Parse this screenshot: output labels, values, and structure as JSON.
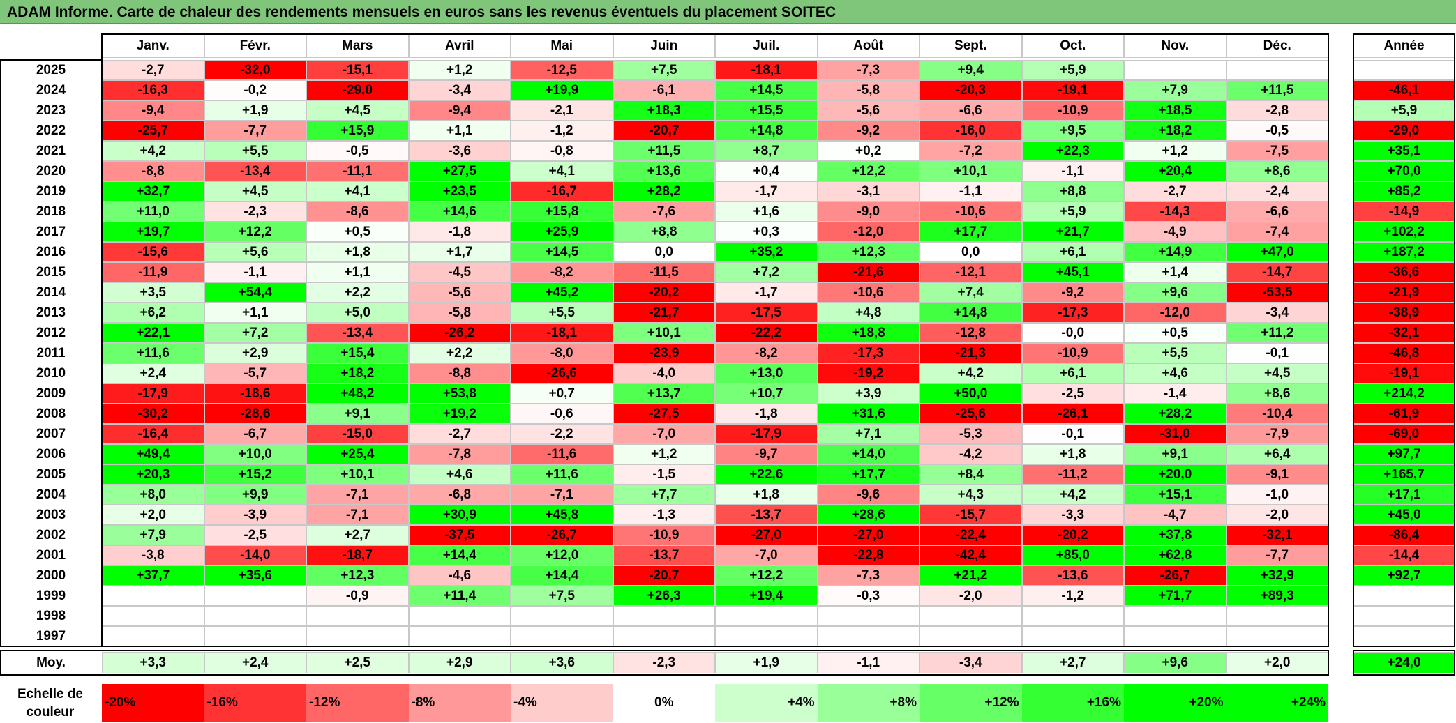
{
  "title": "ADAM Informe. Carte de chaleur des rendements mensuels en euros sans les revenus éventuels du placement SOITEC",
  "colors": {
    "title_bg": "#7fc67b",
    "negative_max": "#ff0000",
    "positive_max": "#00ff00",
    "neutral": "#ffffff"
  },
  "chart_data": {
    "type": "heatmap",
    "title": "ADAM Informe. Carte de chaleur des rendements mensuels en euros sans les revenus éventuels du placement SOITEC",
    "columns": [
      "Janv.",
      "Févr.",
      "Mars",
      "Avril",
      "Mai",
      "Juin",
      "Juil.",
      "Août",
      "Sept.",
      "Oct.",
      "Nov.",
      "Déc."
    ],
    "annual_header": "Année",
    "rows": [
      {
        "year": "2025",
        "values": [
          "-2,7",
          "-32,0",
          "-15,1",
          "+1,2",
          "-12,5",
          "+7,5",
          "-18,1",
          "-7,3",
          "+9,4",
          "+5,9",
          "",
          ""
        ],
        "annual": ""
      },
      {
        "year": "2024",
        "values": [
          "-16,3",
          "-0,2",
          "-29,0",
          "-3,4",
          "+19,9",
          "-6,1",
          "+14,5",
          "-5,8",
          "-20,3",
          "-19,1",
          "+7,9",
          "+11,5"
        ],
        "annual": "-46,1"
      },
      {
        "year": "2023",
        "values": [
          "-9,4",
          "+1,9",
          "+4,5",
          "-9,4",
          "-2,1",
          "+18,3",
          "+15,5",
          "-5,6",
          "-6,6",
          "-10,9",
          "+18,5",
          "-2,8"
        ],
        "annual": "+5,9"
      },
      {
        "year": "2022",
        "values": [
          "-25,7",
          "-7,7",
          "+15,9",
          "+1,1",
          "-1,2",
          "-20,7",
          "+14,8",
          "-9,2",
          "-16,0",
          "+9,5",
          "+18,2",
          "-0,5"
        ],
        "annual": "-29,0"
      },
      {
        "year": "2021",
        "values": [
          "+4,2",
          "+5,5",
          "-0,5",
          "-3,6",
          "-0,8",
          "+11,5",
          "+8,7",
          "+0,2",
          "-7,2",
          "+22,3",
          "+1,2",
          "-7,5"
        ],
        "annual": "+35,1"
      },
      {
        "year": "2020",
        "values": [
          "-8,8",
          "-13,4",
          "-11,1",
          "+27,5",
          "+4,1",
          "+13,6",
          "+0,4",
          "+12,2",
          "+10,1",
          "-1,1",
          "+20,4",
          "+8,6"
        ],
        "annual": "+70,0"
      },
      {
        "year": "2019",
        "values": [
          "+32,7",
          "+4,5",
          "+4,1",
          "+23,5",
          "-16,7",
          "+28,2",
          "-1,7",
          "-3,1",
          "-1,1",
          "+8,8",
          "-2,7",
          "-2,4"
        ],
        "annual": "+85,2"
      },
      {
        "year": "2018",
        "values": [
          "+11,0",
          "-2,3",
          "-8,6",
          "+14,6",
          "+15,8",
          "-7,6",
          "+1,6",
          "-9,0",
          "-10,6",
          "+5,9",
          "-14,3",
          "-6,6"
        ],
        "annual": "-14,9"
      },
      {
        "year": "2017",
        "values": [
          "+19,7",
          "+12,2",
          "+0,5",
          "-1,8",
          "+25,9",
          "+8,8",
          "+0,3",
          "-12,0",
          "+17,7",
          "+21,7",
          "-4,9",
          "-7,4"
        ],
        "annual": "+102,2"
      },
      {
        "year": "2016",
        "values": [
          "-15,6",
          "+5,6",
          "+1,8",
          "+1,7",
          "+14,5",
          "0,0",
          "+35,2",
          "+12,3",
          "0,0",
          "+6,1",
          "+14,9",
          "+47,0"
        ],
        "annual": "+187,2"
      },
      {
        "year": "2015",
        "values": [
          "-11,9",
          "-1,1",
          "+1,1",
          "-4,5",
          "-8,2",
          "-11,5",
          "+7,2",
          "-21,6",
          "-12,1",
          "+45,1",
          "+1,4",
          "-14,7"
        ],
        "annual": "-36,6"
      },
      {
        "year": "2014",
        "values": [
          "+3,5",
          "+54,4",
          "+2,2",
          "-5,6",
          "+45,2",
          "-20,2",
          "-1,7",
          "-10,6",
          "+7,4",
          "-9,2",
          "+9,6",
          "-53,5"
        ],
        "annual": "-21,9"
      },
      {
        "year": "2013",
        "values": [
          "+6,2",
          "+1,1",
          "+5,0",
          "-5,8",
          "+5,5",
          "-21,7",
          "-17,5",
          "+4,8",
          "+14,8",
          "-17,3",
          "-12,0",
          "-3,4"
        ],
        "annual": "-38,9"
      },
      {
        "year": "2012",
        "values": [
          "+22,1",
          "+7,2",
          "-13,4",
          "-26,2",
          "-18,1",
          "+10,1",
          "-22,2",
          "+18,8",
          "-12,8",
          "-0,0",
          "+0,5",
          "+11,2"
        ],
        "annual": "-32,1"
      },
      {
        "year": "2011",
        "values": [
          "+11,6",
          "+2,9",
          "+15,4",
          "+2,2",
          "-8,0",
          "-23,9",
          "-8,2",
          "-17,3",
          "-21,3",
          "-10,9",
          "+5,5",
          "-0,1"
        ],
        "annual": "-46,8"
      },
      {
        "year": "2010",
        "values": [
          "+2,4",
          "-5,7",
          "+18,2",
          "-8,8",
          "-26,6",
          "-4,0",
          "+13,0",
          "-19,2",
          "+4,2",
          "+6,1",
          "+4,6",
          "+4,5"
        ],
        "annual": "-19,1"
      },
      {
        "year": "2009",
        "values": [
          "-17,9",
          "-18,6",
          "+48,2",
          "+53,8",
          "+0,7",
          "+13,7",
          "+10,7",
          "+3,9",
          "+50,0",
          "-2,5",
          "-1,4",
          "+8,6"
        ],
        "annual": "+214,2"
      },
      {
        "year": "2008",
        "values": [
          "-30,2",
          "-28,6",
          "+9,1",
          "+19,2",
          "-0,6",
          "-27,5",
          "-1,8",
          "+31,6",
          "-25,6",
          "-26,1",
          "+28,2",
          "-10,4"
        ],
        "annual": "-61,9"
      },
      {
        "year": "2007",
        "values": [
          "-16,4",
          "-6,7",
          "-15,0",
          "-2,7",
          "-2,2",
          "-7,0",
          "-17,9",
          "+7,1",
          "-5,3",
          "-0,1",
          "-31,0",
          "-7,9"
        ],
        "annual": "-69,0"
      },
      {
        "year": "2006",
        "values": [
          "+49,4",
          "+10,0",
          "+25,4",
          "-7,8",
          "-11,6",
          "+1,2",
          "-9,7",
          "+14,0",
          "-4,2",
          "+1,8",
          "+9,1",
          "+6,4"
        ],
        "annual": "+97,7"
      },
      {
        "year": "2005",
        "values": [
          "+20,3",
          "+15,2",
          "+10,1",
          "+4,6",
          "+11,6",
          "-1,5",
          "+22,6",
          "+17,7",
          "+8,4",
          "-11,2",
          "+20,0",
          "-9,1"
        ],
        "annual": "+165,7"
      },
      {
        "year": "2004",
        "values": [
          "+8,0",
          "+9,9",
          "-7,1",
          "-6,8",
          "-7,1",
          "+7,7",
          "+1,8",
          "-9,6",
          "+4,3",
          "+4,2",
          "+15,1",
          "-1,0"
        ],
        "annual": "+17,1"
      },
      {
        "year": "2003",
        "values": [
          "+2,0",
          "-3,9",
          "-7,1",
          "+30,9",
          "+45,8",
          "-1,3",
          "-13,7",
          "+28,6",
          "-15,7",
          "-3,3",
          "-4,7",
          "-2,0"
        ],
        "annual": "+45,0"
      },
      {
        "year": "2002",
        "values": [
          "+7,9",
          "-2,5",
          "+2,7",
          "-37,5",
          "-26,7",
          "-10,9",
          "-27,0",
          "-27,0",
          "-22,4",
          "-20,2",
          "+37,8",
          "-32,1"
        ],
        "annual": "-86,4"
      },
      {
        "year": "2001",
        "values": [
          "-3,8",
          "-14,0",
          "-18,7",
          "+14,4",
          "+12,0",
          "-13,7",
          "-7,0",
          "-22,8",
          "-42,4",
          "+85,0",
          "+62,8",
          "-7,7"
        ],
        "annual": "-14,4"
      },
      {
        "year": "2000",
        "values": [
          "+37,7",
          "+35,6",
          "+12,3",
          "-4,6",
          "+14,4",
          "-20,7",
          "+12,2",
          "-7,3",
          "+21,2",
          "-13,6",
          "-26,7",
          "+32,9"
        ],
        "annual": "+92,7"
      },
      {
        "year": "1999",
        "values": [
          "",
          "",
          "-0,9",
          "+11,4",
          "+7,5",
          "+26,3",
          "+19,4",
          "-0,3",
          "-2,0",
          "-1,2",
          "+71,7",
          "+89,3"
        ],
        "annual": ""
      },
      {
        "year": "1998",
        "values": [
          "",
          "",
          "",
          "",
          "",
          "",
          "",
          "",
          "",
          "",
          "",
          ""
        ],
        "annual": ""
      },
      {
        "year": "1997",
        "values": [
          "",
          "",
          "",
          "",
          "",
          "",
          "",
          "",
          "",
          "",
          "",
          ""
        ],
        "annual": ""
      }
    ],
    "average": {
      "label": "Moy.",
      "values": [
        "+3,3",
        "+2,4",
        "+2,5",
        "+2,9",
        "+3,6",
        "-2,3",
        "+1,9",
        "-1,1",
        "-3,4",
        "+2,7",
        "+9,6",
        "+2,0"
      ],
      "annual": "+24,0"
    },
    "color_scale": {
      "label": "Echelle de couleur",
      "steps": [
        "-20%",
        "-16%",
        "-12%",
        "-8%",
        "-4%",
        "0%",
        "+4%",
        "+8%",
        "+12%",
        "+16%",
        "+20%",
        "+24%"
      ]
    }
  }
}
